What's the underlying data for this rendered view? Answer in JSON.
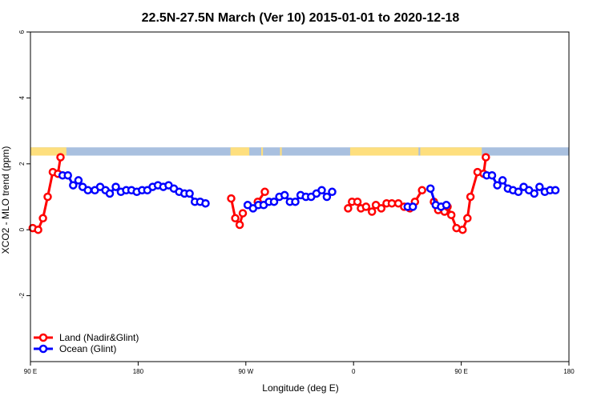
{
  "chart_data": {
    "type": "line",
    "title": "22.5N-27.5N March (Ver 10)   2015-01-01 to 2020-12-18",
    "xlabel": "Longitude (deg E)",
    "ylabel": "XCO2 - MLO trend (ppm)",
    "xlim": [
      90,
      405
    ],
    "ylim": [
      -4,
      6
    ],
    "x_ticks": [
      {
        "value": 90,
        "label": "90 E"
      },
      {
        "value": 153,
        "label": "180"
      },
      {
        "value": 216,
        "label": "90 W"
      },
      {
        "value": 279,
        "label": "0"
      },
      {
        "value": 342,
        "label": "90 E"
      },
      {
        "value": 405,
        "label": "180"
      }
    ],
    "y_ticks": [
      {
        "value": -2,
        "label": "-2"
      },
      {
        "value": 0,
        "label": "0"
      },
      {
        "value": 2,
        "label": "2"
      },
      {
        "value": 4,
        "label": "4"
      },
      {
        "value": 6,
        "label": "6"
      }
    ],
    "land_strip": {
      "y_range": [
        2.25,
        2.5
      ],
      "land_color": "#fedf7e",
      "ocean_color": "#a9c0df",
      "land_spans": [
        [
          90,
          111
        ],
        [
          207,
          218
        ],
        [
          225,
          226
        ],
        [
          236,
          237
        ],
        [
          277,
          317
        ],
        [
          318,
          354
        ]
      ]
    },
    "legend_position": "bottom-left",
    "series": [
      {
        "name": "Land (Nadir&Glint)",
        "color": "#ff0000",
        "segments": [
          [
            [
              91.3,
              0.05
            ],
            [
              94.5,
              0.0
            ],
            [
              97.3,
              0.35
            ],
            [
              100.1,
              1.0
            ],
            [
              103.1,
              1.75
            ],
            [
              106.1,
              1.7
            ],
            [
              107.6,
              2.2
            ]
          ],
          [
            [
              207.4,
              0.95
            ],
            [
              209.8,
              0.35
            ],
            [
              212.4,
              0.15
            ],
            [
              214.2,
              0.5
            ]
          ],
          [
            [
              223.0,
              0.85
            ],
            [
              227.1,
              1.15
            ]
          ],
          [
            [
              275.8,
              0.65
            ],
            [
              278.1,
              0.85
            ],
            [
              281.3,
              0.85
            ],
            [
              283.3,
              0.65
            ],
            [
              286.3,
              0.7
            ],
            [
              289.8,
              0.55
            ],
            [
              292.1,
              0.75
            ],
            [
              295.2,
              0.65
            ],
            [
              298.3,
              0.8
            ],
            [
              301.4,
              0.8
            ],
            [
              305.2,
              0.8
            ],
            [
              308.6,
              0.7
            ],
            [
              311.9,
              0.65
            ],
            [
              314.9,
              0.85
            ],
            [
              319.1,
              1.2
            ]
          ],
          [
            [
              326.0,
              0.85
            ],
            [
              328.5,
              0.6
            ],
            [
              332.2,
              0.55
            ],
            [
              334.0,
              0.7
            ],
            [
              336.2,
              0.45
            ],
            [
              339.2,
              0.05
            ],
            [
              342.8,
              0.0
            ],
            [
              345.6,
              0.35
            ],
            [
              347.4,
              1.0
            ],
            [
              351.5,
              1.75
            ],
            [
              355.1,
              1.7
            ],
            [
              356.4,
              2.2
            ]
          ]
        ]
      },
      {
        "name": "Ocean (Glint)",
        "color": "#0000ff",
        "segments": [
          [
            [
              108.8,
              1.65
            ],
            [
              111.9,
              1.65
            ],
            [
              115.0,
              1.35
            ],
            [
              118.1,
              1.5
            ],
            [
              120.5,
              1.3
            ],
            [
              123.6,
              1.2
            ],
            [
              127.7,
              1.2
            ],
            [
              130.8,
              1.3
            ],
            [
              133.9,
              1.2
            ],
            [
              136.4,
              1.1
            ],
            [
              139.9,
              1.3
            ],
            [
              142.9,
              1.15
            ],
            [
              146.0,
              1.2
            ],
            [
              149.1,
              1.2
            ],
            [
              152.2,
              1.15
            ],
            [
              155.3,
              1.2
            ],
            [
              158.4,
              1.2
            ],
            [
              161.5,
              1.3
            ],
            [
              164.6,
              1.35
            ],
            [
              167.7,
              1.3
            ],
            [
              170.8,
              1.35
            ],
            [
              173.9,
              1.25
            ],
            [
              177.0,
              1.15
            ],
            [
              180.1,
              1.1
            ],
            [
              183.1,
              1.1
            ],
            [
              186.2,
              0.85
            ],
            [
              189.3,
              0.85
            ],
            [
              192.4,
              0.8
            ]
          ],
          [
            [
              217.1,
              0.75
            ],
            [
              220.2,
              0.65
            ],
            [
              223.3,
              0.75
            ],
            [
              226.4,
              0.75
            ],
            [
              229.5,
              0.85
            ],
            [
              232.5,
              0.85
            ],
            [
              235.6,
              1.0
            ],
            [
              238.7,
              1.05
            ],
            [
              241.8,
              0.85
            ],
            [
              244.9,
              0.85
            ],
            [
              248.0,
              1.05
            ],
            [
              251.1,
              1.0
            ],
            [
              254.2,
              1.0
            ],
            [
              257.3,
              1.1
            ],
            [
              260.4,
              1.2
            ],
            [
              263.4,
              1.0
            ],
            [
              266.5,
              1.15
            ]
          ],
          [
            [
              310.7,
              0.7
            ],
            [
              313.7,
              0.7
            ]
          ],
          [
            [
              324.0,
              1.25
            ],
            [
              327.1,
              0.75
            ],
            [
              330.2,
              0.7
            ],
            [
              333.3,
              0.75
            ]
          ],
          [
            [
              356.9,
              1.65
            ],
            [
              360.0,
              1.65
            ],
            [
              363.1,
              1.35
            ],
            [
              366.2,
              1.5
            ],
            [
              369.3,
              1.25
            ],
            [
              372.3,
              1.2
            ],
            [
              375.4,
              1.15
            ],
            [
              378.5,
              1.3
            ],
            [
              381.6,
              1.2
            ],
            [
              384.7,
              1.1
            ],
            [
              387.8,
              1.3
            ],
            [
              390.9,
              1.15
            ],
            [
              394.0,
              1.2
            ],
            [
              397.1,
              1.2
            ]
          ]
        ]
      }
    ]
  }
}
